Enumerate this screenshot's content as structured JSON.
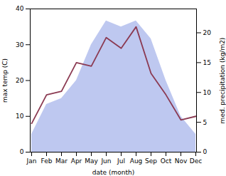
{
  "chart_data": {
    "type": "line",
    "xlabel": "date (month)",
    "ylabel": "max temp (C)",
    "y2label": "med. precipitation (kg/m2)",
    "categories": [
      "Jan",
      "Feb",
      "Mar",
      "Apr",
      "May",
      "Jun",
      "Jul",
      "Aug",
      "Sep",
      "Oct",
      "Nov",
      "Dec"
    ],
    "series": [
      {
        "type": "area",
        "axis": "y2",
        "color": "#bec8f0",
        "values": [
          3,
          8,
          9,
          12,
          18,
          22,
          21,
          22,
          19,
          12,
          6,
          3
        ]
      },
      {
        "type": "line",
        "color": "#8B3A52",
        "values": [
          8,
          16,
          17,
          25,
          24,
          32,
          29,
          35,
          22,
          16,
          9,
          10
        ]
      }
    ],
    "ylim": [
      0,
      40
    ],
    "yticks": [
      0,
      10,
      20,
      30,
      40
    ],
    "y2lim": [
      0,
      24
    ],
    "y2ticks": [
      0,
      5,
      10,
      15,
      20
    ]
  }
}
